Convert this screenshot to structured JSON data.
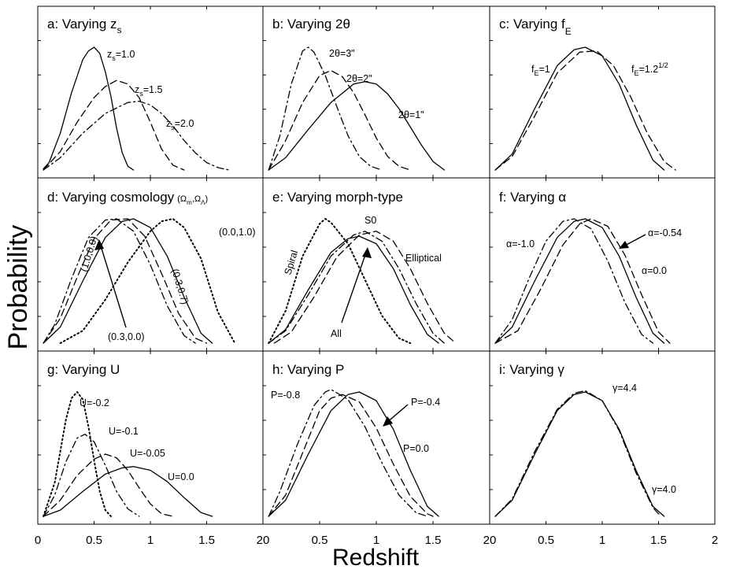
{
  "chart_data": {
    "type": "line",
    "ylabel": "Probability",
    "xlabel": "Redshift",
    "xlim": [
      0,
      2
    ],
    "x_ticks": [
      "0",
      "0.5",
      "1",
      "1.5",
      "2"
    ],
    "panels": [
      {
        "title": "a:  Varying z",
        "title_sub": "s",
        "series": [
          {
            "name": "z_s=1.0",
            "style": "solid",
            "x": [
              0.05,
              0.1,
              0.2,
              0.3,
              0.4,
              0.45,
              0.5,
              0.55,
              0.6,
              0.65,
              0.7,
              0.75,
              0.8,
              0.85
            ],
            "y": [
              0.01,
              0.06,
              0.3,
              0.63,
              0.9,
              0.97,
              1.0,
              0.95,
              0.8,
              0.6,
              0.34,
              0.14,
              0.03,
              0.0
            ]
          },
          {
            "name": "z_s=1.5",
            "style": "dash",
            "x": [
              0.05,
              0.2,
              0.35,
              0.5,
              0.6,
              0.7,
              0.8,
              0.9,
              1.0,
              1.1,
              1.2,
              1.3
            ],
            "y": [
              0.0,
              0.15,
              0.39,
              0.59,
              0.68,
              0.73,
              0.7,
              0.59,
              0.39,
              0.17,
              0.04,
              0.0
            ]
          },
          {
            "name": "z_s=2.0",
            "style": "dashdot",
            "x": [
              0.05,
              0.2,
              0.4,
              0.6,
              0.8,
              0.9,
              1.0,
              1.1,
              1.2,
              1.3,
              1.4,
              1.5,
              1.6,
              1.7
            ],
            "y": [
              0.0,
              0.1,
              0.3,
              0.46,
              0.55,
              0.56,
              0.53,
              0.46,
              0.36,
              0.24,
              0.14,
              0.06,
              0.02,
              0.0
            ]
          }
        ],
        "labels": [
          "z",
          "=1.0",
          "z",
          "=1.5",
          "z",
          "=2.0"
        ],
        "label_sub": "s"
      },
      {
        "title": "b:  Varying 2θ",
        "series": [
          {
            "name": "2θ=3\"",
            "style": "dashdot",
            "x": [
              0.05,
              0.15,
              0.25,
              0.35,
              0.4,
              0.45,
              0.55,
              0.65,
              0.75,
              0.85,
              0.95,
              1.05
            ],
            "y": [
              0.0,
              0.28,
              0.7,
              0.97,
              1.0,
              0.96,
              0.77,
              0.52,
              0.28,
              0.11,
              0.03,
              0.0
            ]
          },
          {
            "name": "2θ=2\"",
            "style": "dash",
            "x": [
              0.05,
              0.2,
              0.35,
              0.5,
              0.6,
              0.7,
              0.8,
              0.9,
              1.0,
              1.1,
              1.2,
              1.3
            ],
            "y": [
              0.0,
              0.24,
              0.55,
              0.77,
              0.81,
              0.76,
              0.63,
              0.45,
              0.26,
              0.11,
              0.03,
              0.0
            ]
          },
          {
            "name": "2θ=1\"",
            "style": "solid",
            "x": [
              0.05,
              0.2,
              0.4,
              0.6,
              0.8,
              0.9,
              1.0,
              1.1,
              1.2,
              1.3,
              1.4,
              1.5,
              1.6
            ],
            "y": [
              0.0,
              0.1,
              0.33,
              0.55,
              0.7,
              0.72,
              0.7,
              0.62,
              0.5,
              0.35,
              0.2,
              0.07,
              0.0
            ]
          }
        ],
        "labels": [
          "2θ=3\"",
          "2θ=2\"",
          "2θ=1\""
        ]
      },
      {
        "title": "c:  Varying f",
        "title_sub": "E",
        "series": [
          {
            "name": "f_E=1",
            "style": "solid",
            "x": [
              0.05,
              0.2,
              0.4,
              0.6,
              0.75,
              0.85,
              1.0,
              1.15,
              1.3,
              1.45,
              1.55
            ],
            "y": [
              0.0,
              0.13,
              0.5,
              0.85,
              0.98,
              1.0,
              0.93,
              0.7,
              0.37,
              0.08,
              0.0
            ]
          },
          {
            "name": "f_E=1.2^1/2",
            "style": "dash",
            "x": [
              0.05,
              0.2,
              0.4,
              0.6,
              0.8,
              0.95,
              1.1,
              1.25,
              1.4,
              1.55,
              1.65
            ],
            "y": [
              0.0,
              0.11,
              0.44,
              0.79,
              0.96,
              0.97,
              0.85,
              0.6,
              0.3,
              0.07,
              0.0
            ]
          }
        ],
        "labels": [
          "f",
          "=1",
          "f",
          "=1.2",
          "1/2"
        ],
        "label_sub": "E"
      },
      {
        "title": "d:  Varying cosmology",
        "title_suffix": "(Ω",
        "title_suffix_sub1": "m",
        "title_suffix_mid": ",Ω",
        "title_suffix_sub2": "Λ",
        "title_suffix_end": ")",
        "series": [
          {
            "name": "(0.3,0.7)",
            "style": "solid",
            "x": [
              0.05,
              0.2,
              0.4,
              0.6,
              0.75,
              0.85,
              1.0,
              1.15,
              1.3,
              1.45,
              1.55
            ],
            "y": [
              0.0,
              0.13,
              0.5,
              0.85,
              0.98,
              1.0,
              0.93,
              0.7,
              0.37,
              0.08,
              0.0
            ]
          },
          {
            "name": "(1.0,0.0)",
            "style": "dashdot",
            "x": [
              0.05,
              0.15,
              0.3,
              0.45,
              0.6,
              0.7,
              0.85,
              1.0,
              1.15,
              1.3,
              1.4
            ],
            "y": [
              0.0,
              0.15,
              0.52,
              0.85,
              0.99,
              1.0,
              0.9,
              0.63,
              0.3,
              0.06,
              0.0
            ]
          },
          {
            "name": "(0.3,0.0)",
            "style": "dash",
            "x": [
              0.05,
              0.2,
              0.35,
              0.5,
              0.65,
              0.8,
              0.95,
              1.1,
              1.25,
              1.4,
              1.5
            ],
            "y": [
              0.0,
              0.2,
              0.53,
              0.84,
              0.99,
              1.0,
              0.86,
              0.56,
              0.24,
              0.04,
              0.0
            ]
          },
          {
            "name": "(0.0,1.0)",
            "style": "dot",
            "x": [
              0.2,
              0.4,
              0.6,
              0.8,
              1.0,
              1.1,
              1.2,
              1.3,
              1.45,
              1.6,
              1.75
            ],
            "y": [
              0.0,
              0.1,
              0.35,
              0.65,
              0.9,
              0.98,
              1.0,
              0.93,
              0.68,
              0.25,
              0.0
            ]
          }
        ],
        "labels": [
          "(0.0,1.0)",
          "(0.3,0.7)",
          "(1.0,0.0)",
          "(0.3,0.0)"
        ]
      },
      {
        "title": "e:  Varying morph-type",
        "series": [
          {
            "name": "All",
            "style": "solid",
            "x": [
              0.05,
              0.2,
              0.4,
              0.6,
              0.75,
              0.85,
              1.0,
              1.15,
              1.3,
              1.45,
              1.55
            ],
            "y": [
              0.0,
              0.11,
              0.43,
              0.73,
              0.84,
              0.86,
              0.8,
              0.6,
              0.31,
              0.07,
              0.0
            ]
          },
          {
            "name": "Spiral",
            "style": "dot",
            "x": [
              0.05,
              0.2,
              0.35,
              0.5,
              0.55,
              0.6,
              0.75,
              0.9,
              1.05,
              1.2,
              1.3
            ],
            "y": [
              0.0,
              0.26,
              0.7,
              0.96,
              1.0,
              0.97,
              0.8,
              0.51,
              0.22,
              0.04,
              0.0
            ]
          },
          {
            "name": "S0",
            "style": "dashdot",
            "x": [
              0.05,
              0.2,
              0.4,
              0.6,
              0.8,
              0.9,
              1.05,
              1.2,
              1.35,
              1.5,
              1.6
            ],
            "y": [
              0.0,
              0.1,
              0.39,
              0.7,
              0.87,
              0.9,
              0.82,
              0.6,
              0.32,
              0.08,
              0.0
            ]
          },
          {
            "name": "Elliptical",
            "style": "dash",
            "x": [
              0.1,
              0.25,
              0.45,
              0.65,
              0.85,
              1.0,
              1.15,
              1.3,
              1.45,
              1.6,
              1.7
            ],
            "y": [
              0.0,
              0.09,
              0.37,
              0.69,
              0.87,
              0.9,
              0.82,
              0.6,
              0.32,
              0.08,
              0.0
            ]
          }
        ],
        "labels": [
          "Spiral",
          "S0",
          "Elliptical",
          "All"
        ]
      },
      {
        "title": "f:  Varying α",
        "series": [
          {
            "name": "α=-0.54",
            "style": "solid",
            "x": [
              0.05,
              0.2,
              0.4,
              0.6,
              0.75,
              0.85,
              1.0,
              1.15,
              1.3,
              1.45,
              1.55
            ],
            "y": [
              0.0,
              0.13,
              0.5,
              0.85,
              0.98,
              1.0,
              0.93,
              0.7,
              0.37,
              0.08,
              0.0
            ]
          },
          {
            "name": "α=-1.0",
            "style": "dashdot",
            "x": [
              0.05,
              0.2,
              0.35,
              0.5,
              0.65,
              0.75,
              0.9,
              1.05,
              1.2,
              1.35,
              1.45
            ],
            "y": [
              0.0,
              0.19,
              0.52,
              0.82,
              0.98,
              1.0,
              0.92,
              0.66,
              0.33,
              0.07,
              0.0
            ]
          },
          {
            "name": "α=0.0",
            "style": "dash",
            "x": [
              0.05,
              0.25,
              0.45,
              0.65,
              0.8,
              0.9,
              1.05,
              1.2,
              1.35,
              1.5,
              1.6
            ],
            "y": [
              0.0,
              0.1,
              0.43,
              0.79,
              0.96,
              1.0,
              0.94,
              0.71,
              0.39,
              0.09,
              0.0
            ]
          }
        ],
        "labels": [
          "α=-1.0",
          "α=-0.54",
          "α=0.0"
        ]
      },
      {
        "title": "g:  Varying U",
        "series": [
          {
            "name": "U=0.0",
            "style": "solid",
            "x": [
              0.05,
              0.2,
              0.4,
              0.6,
              0.75,
              0.85,
              1.0,
              1.15,
              1.3,
              1.45,
              1.55
            ],
            "y": [
              0.0,
              0.05,
              0.2,
              0.34,
              0.39,
              0.4,
              0.37,
              0.28,
              0.15,
              0.03,
              0.0
            ]
          },
          {
            "name": "U=-0.05",
            "style": "dash",
            "x": [
              0.05,
              0.2,
              0.35,
              0.5,
              0.6,
              0.7,
              0.8,
              0.9,
              1.0,
              1.1,
              1.2
            ],
            "y": [
              0.0,
              0.13,
              0.33,
              0.46,
              0.5,
              0.47,
              0.37,
              0.23,
              0.1,
              0.02,
              0.0
            ]
          },
          {
            "name": "U=-0.1",
            "style": "dashdot",
            "x": [
              0.05,
              0.15,
              0.25,
              0.35,
              0.42,
              0.5,
              0.6,
              0.7,
              0.8,
              0.9
            ],
            "y": [
              0.0,
              0.17,
              0.44,
              0.63,
              0.66,
              0.6,
              0.41,
              0.2,
              0.06,
              0.0
            ]
          },
          {
            "name": "U=-0.2",
            "style": "dot",
            "x": [
              0.05,
              0.15,
              0.25,
              0.3,
              0.35,
              0.4,
              0.45,
              0.5,
              0.55,
              0.6,
              0.65
            ],
            "y": [
              0.0,
              0.27,
              0.78,
              0.95,
              1.0,
              0.94,
              0.72,
              0.45,
              0.2,
              0.05,
              0.0
            ]
          }
        ],
        "labels": [
          "U=-0.2",
          "U=-0.1",
          "U=-0.05",
          "U=0.0"
        ]
      },
      {
        "title": "h:  Varying P",
        "series": [
          {
            "name": "P=-0.4",
            "style": "solid",
            "x": [
              0.05,
              0.2,
              0.4,
              0.6,
              0.75,
              0.85,
              1.0,
              1.15,
              1.3,
              1.45,
              1.55
            ],
            "y": [
              0.0,
              0.13,
              0.5,
              0.85,
              0.98,
              1.0,
              0.93,
              0.7,
              0.37,
              0.08,
              0.0
            ]
          },
          {
            "name": "P=-0.8",
            "style": "dashdot",
            "x": [
              0.05,
              0.15,
              0.3,
              0.45,
              0.55,
              0.6,
              0.75,
              0.9,
              1.05,
              1.2,
              1.35,
              1.45
            ],
            "y": [
              0.0,
              0.2,
              0.57,
              0.89,
              1.0,
              1.02,
              0.94,
              0.72,
              0.43,
              0.17,
              0.03,
              0.0
            ]
          },
          {
            "name": "P=0.0",
            "style": "dash",
            "x": [
              0.05,
              0.2,
              0.35,
              0.5,
              0.6,
              0.7,
              0.85,
              1.0,
              1.15,
              1.3,
              1.45,
              1.5
            ],
            "y": [
              0.0,
              0.17,
              0.51,
              0.85,
              0.95,
              0.98,
              0.92,
              0.71,
              0.42,
              0.16,
              0.02,
              0.0
            ]
          }
        ],
        "labels": [
          "P=-0.8",
          "P=-0.4",
          "P=0.0"
        ]
      },
      {
        "title": "i:  Varying γ",
        "series": [
          {
            "name": "γ=4.4",
            "style": "solid",
            "x": [
              0.05,
              0.2,
              0.4,
              0.6,
              0.75,
              0.85,
              1.0,
              1.15,
              1.3,
              1.45,
              1.55
            ],
            "y": [
              0.0,
              0.13,
              0.5,
              0.85,
              0.98,
              1.0,
              0.93,
              0.7,
              0.37,
              0.08,
              0.0
            ]
          },
          {
            "name": "γ=4.0",
            "style": "dashdot",
            "x": [
              0.05,
              0.2,
              0.4,
              0.6,
              0.75,
              0.85,
              1.0,
              1.15,
              1.3,
              1.45,
              1.52
            ],
            "y": [
              0.0,
              0.14,
              0.52,
              0.86,
              0.99,
              1.01,
              0.93,
              0.69,
              0.35,
              0.07,
              0.0
            ]
          }
        ],
        "labels": [
          "γ=4.4",
          "γ=4.0"
        ]
      }
    ]
  }
}
